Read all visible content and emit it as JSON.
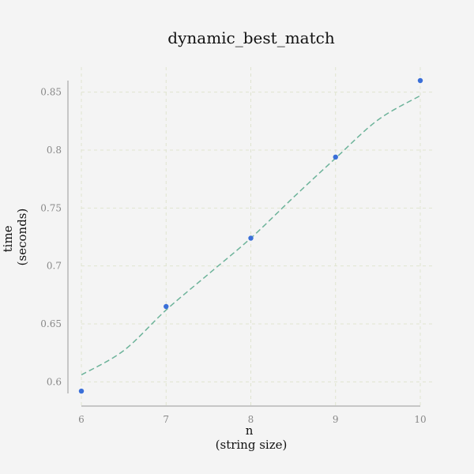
{
  "chart_data": {
    "type": "scatter",
    "title": "dynamic_best_match",
    "xlabel": [
      "n",
      "(string size)"
    ],
    "ylabel": [
      "time",
      "(seconds)"
    ],
    "x": [
      6,
      7,
      8,
      9,
      10
    ],
    "y": [
      0.592,
      0.665,
      0.724,
      0.794,
      0.86
    ],
    "xlim": [
      6,
      10
    ],
    "ylim": [
      0.59,
      0.86
    ],
    "xticks": [
      6,
      7,
      8,
      9,
      10
    ],
    "yticks": [
      0.6,
      0.65,
      0.7,
      0.75,
      0.8,
      0.85
    ],
    "ytick_labels": [
      "0.6",
      "0.65",
      "0.7",
      "0.75",
      "0.8",
      "0.85"
    ],
    "fit_line": {
      "x": [
        6,
        6.5,
        7,
        7.5,
        8,
        8.5,
        9,
        9.5,
        10
      ],
      "y": [
        0.606,
        0.627,
        0.662,
        0.693,
        0.724,
        0.759,
        0.793,
        0.826,
        0.847
      ]
    },
    "grid": true,
    "colors": {
      "points": "#3a6fd8",
      "fit_line": "#6db39a",
      "grid": "#dfe3cf",
      "background": "#f4f4f4"
    }
  }
}
